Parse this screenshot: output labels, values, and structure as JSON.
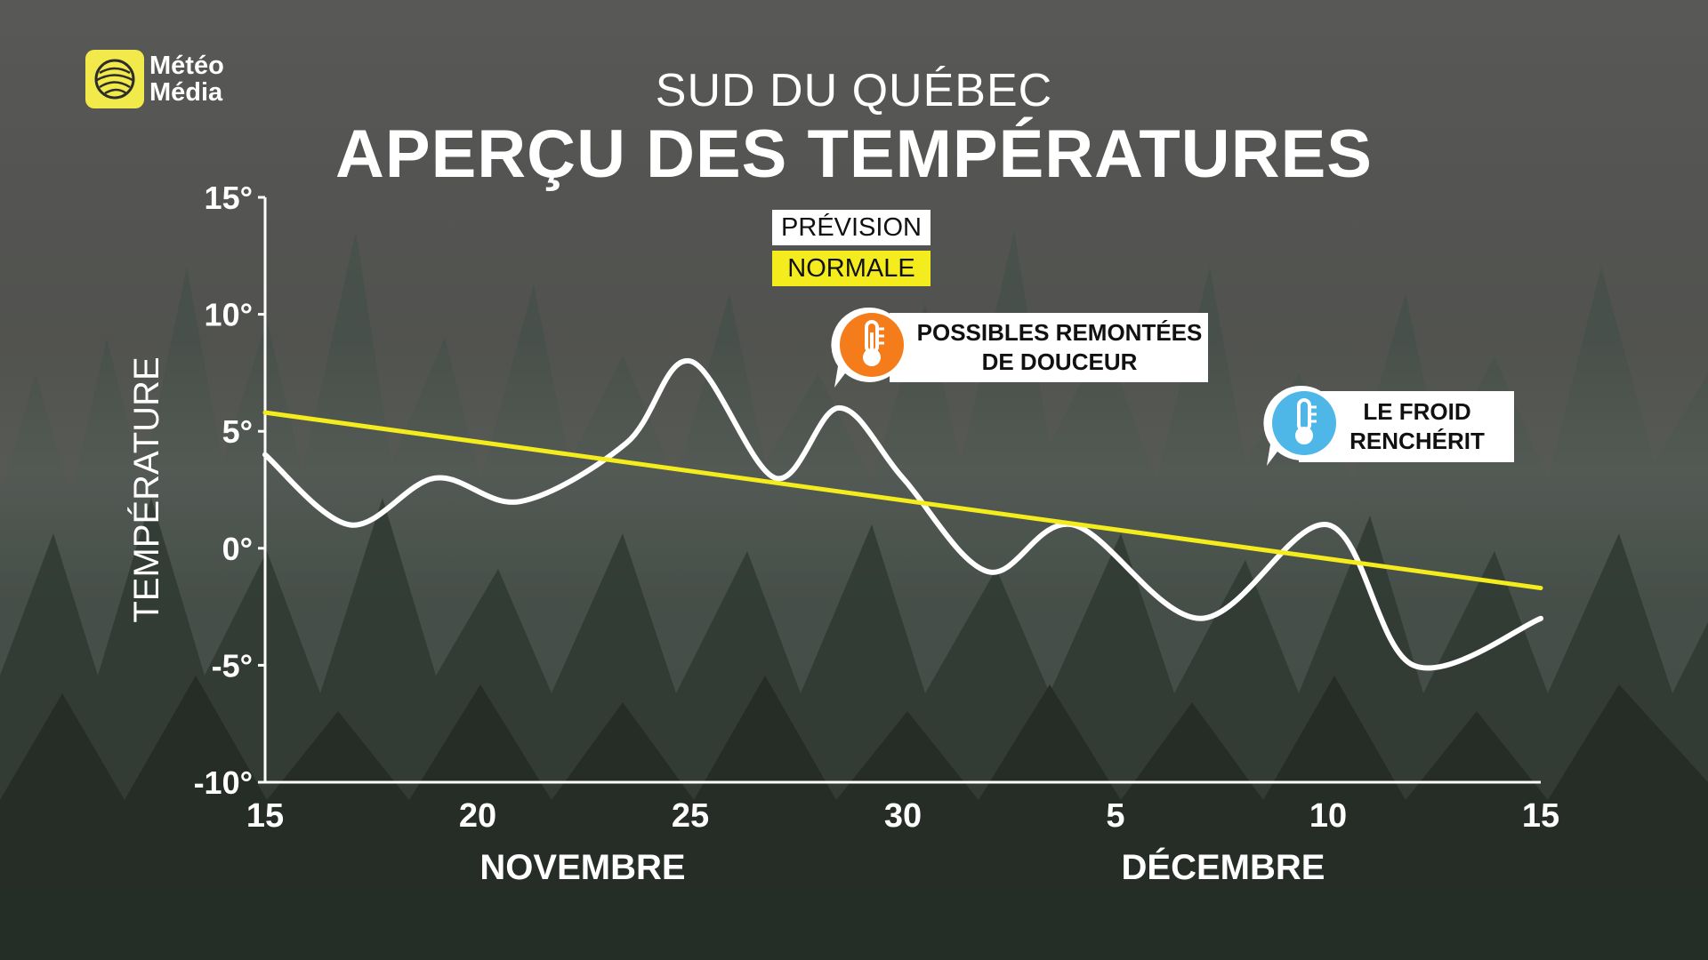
{
  "brand": {
    "name_line1": "Météo",
    "name_line2": "Média",
    "color": "#f2e94a"
  },
  "header": {
    "subtitle": "SUD DU QUÉBEC",
    "title": "APERÇU DES TEMPÉRATURES"
  },
  "legend": {
    "forecast": {
      "label": "PRÉVISION",
      "color": "#ffffff"
    },
    "normal": {
      "label": "NORMALE",
      "color": "#f4ec1d"
    }
  },
  "callouts": {
    "warm": {
      "line1": "POSSIBLES REMONTÉES",
      "line2": "DE DOUCEUR",
      "icon": "thermometer-hot-icon",
      "color": "#f47c1a"
    },
    "cold": {
      "line1": "LE FROID",
      "line2": "RENCHÉRIT",
      "icon": "thermometer-cold-icon",
      "color": "#4fb6e8"
    }
  },
  "months": {
    "november": "NOVEMBRE",
    "december": "DÉCEMBRE"
  },
  "chart_data": {
    "type": "line",
    "ylabel": "TEMPÉRATURE",
    "ylim": [
      -10,
      15
    ],
    "xlim": [
      "2023-11-15",
      "2023-12-15"
    ],
    "y_ticks": [
      {
        "value": 15,
        "label": "15°"
      },
      {
        "value": 10,
        "label": "10°"
      },
      {
        "value": 5,
        "label": "5°"
      },
      {
        "value": 0,
        "label": "0°"
      },
      {
        "value": -5,
        "label": "-5°"
      },
      {
        "value": -10,
        "label": "-10°"
      }
    ],
    "x_ticks": [
      {
        "date": "2023-11-15",
        "label": "15"
      },
      {
        "date": "2023-11-20",
        "label": "20"
      },
      {
        "date": "2023-11-25",
        "label": "25"
      },
      {
        "date": "2023-11-30",
        "label": "30"
      },
      {
        "date": "2023-12-05",
        "label": "5"
      },
      {
        "date": "2023-12-10",
        "label": "10"
      },
      {
        "date": "2023-12-15",
        "label": "15"
      }
    ],
    "series": [
      {
        "name": "PRÉVISION",
        "color": "#ffffff",
        "points": [
          [
            "2023-11-15",
            4
          ],
          [
            "2023-11-17",
            1
          ],
          [
            "2023-11-19",
            3
          ],
          [
            "2023-11-21",
            2
          ],
          [
            "2023-11-23.5",
            4.5
          ],
          [
            "2023-11-25",
            8
          ],
          [
            "2023-11-27",
            3
          ],
          [
            "2023-11-28.5",
            6
          ],
          [
            "2023-11-30",
            3
          ],
          [
            "2023-12-02",
            -1
          ],
          [
            "2023-12-04",
            1
          ],
          [
            "2023-12-07",
            -3
          ],
          [
            "2023-12-10",
            1
          ],
          [
            "2023-12-12",
            -5
          ],
          [
            "2023-12-15",
            -3
          ]
        ]
      },
      {
        "name": "NORMALE",
        "color": "#f4ec1d",
        "points": [
          [
            "2023-11-15",
            5.8
          ],
          [
            "2023-12-15",
            -1.7
          ]
        ]
      }
    ],
    "grid": false
  }
}
